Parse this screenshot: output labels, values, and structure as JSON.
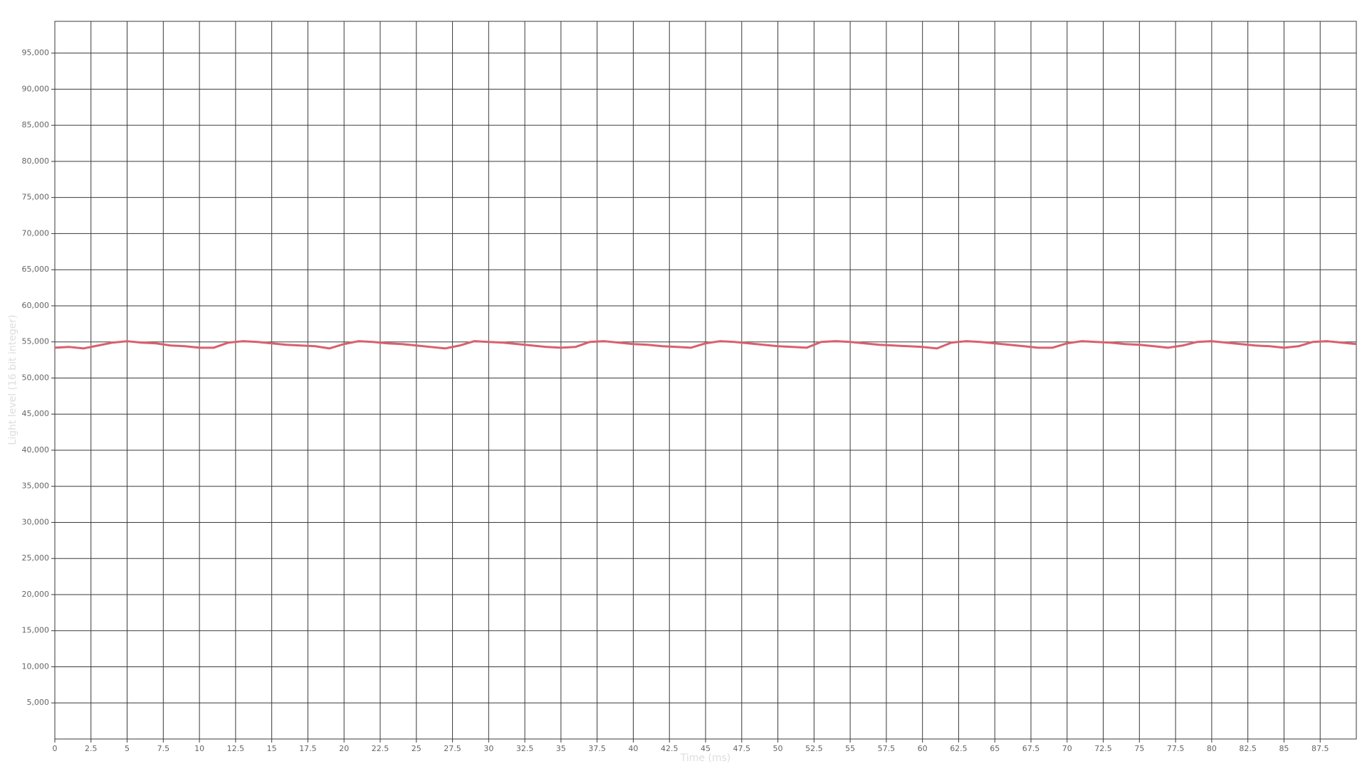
{
  "chart_data": {
    "type": "line",
    "x_label": "Time (ms)",
    "y_label": "Light level (16 bit integer)",
    "x": [
      0,
      1,
      2,
      3,
      4,
      5,
      6,
      7,
      8,
      9,
      10,
      11,
      12,
      13,
      14,
      15,
      16,
      17,
      18,
      19,
      20,
      21,
      22,
      23,
      24,
      25,
      26,
      27,
      28,
      29,
      30,
      31,
      32,
      33,
      34,
      35,
      36,
      37,
      38,
      39,
      40,
      41,
      42,
      43,
      44,
      45,
      46,
      47,
      48,
      49,
      50,
      51,
      52,
      53,
      54,
      55,
      56,
      57,
      58,
      59,
      60,
      61,
      62,
      63,
      64,
      65,
      66,
      67,
      68,
      69,
      70,
      71,
      72,
      73,
      74,
      75,
      76,
      77,
      78,
      79,
      80,
      81,
      82,
      83,
      84,
      85,
      86,
      87,
      88,
      89,
      90
    ],
    "series": [
      {
        "name": "Light level",
        "color": "#d9606e",
        "values": [
          54200,
          54300,
          54100,
          54500,
          54900,
          55100,
          54900,
          54800,
          54500,
          54400,
          54200,
          54200,
          54900,
          55100,
          55000,
          54800,
          54600,
          54500,
          54400,
          54100,
          54700,
          55100,
          55000,
          54800,
          54700,
          54500,
          54300,
          54100,
          54500,
          55100,
          55000,
          54900,
          54700,
          54500,
          54300,
          54200,
          54300,
          55000,
          55100,
          54900,
          54700,
          54600,
          54400,
          54300,
          54200,
          54800,
          55100,
          55000,
          54800,
          54600,
          54400,
          54300,
          54200,
          55000,
          55100,
          55000,
          54800,
          54600,
          54500,
          54400,
          54300,
          54100,
          54900,
          55100,
          55000,
          54800,
          54600,
          54400,
          54200,
          54200,
          54800,
          55100,
          55000,
          54900,
          54700,
          54600,
          54400,
          54200,
          54500,
          55000,
          55100,
          54900,
          54700,
          54500,
          54400,
          54200,
          54400,
          55000,
          55100,
          54900,
          54700
        ]
      }
    ],
    "xlim": [
      0,
      90
    ],
    "ylim": [
      0,
      99400
    ],
    "xticks": [
      0,
      2.5,
      5,
      7.5,
      10,
      12.5,
      15,
      17.5,
      20,
      22.5,
      25,
      27.5,
      30,
      32.5,
      35,
      37.5,
      40,
      42.5,
      45,
      47.5,
      50,
      52.5,
      55,
      57.5,
      60,
      62.5,
      65,
      67.5,
      70,
      72.5,
      75,
      77.5,
      80,
      82.5,
      85,
      87.5
    ],
    "yticks": [
      {
        "value": 5000,
        "label": "5,000"
      },
      {
        "value": 10000,
        "label": "10,000"
      },
      {
        "value": 15000,
        "label": "15,000"
      },
      {
        "value": 20000,
        "label": "20,000"
      },
      {
        "value": 25000,
        "label": "25,000"
      },
      {
        "value": 30000,
        "label": "30,000"
      },
      {
        "value": 35000,
        "label": "35,000"
      },
      {
        "value": 40000,
        "label": "40,000"
      },
      {
        "value": 45000,
        "label": "45,000"
      },
      {
        "value": 50000,
        "label": "50,000"
      },
      {
        "value": 55000,
        "label": "55,000"
      },
      {
        "value": 60000,
        "label": "60,000"
      },
      {
        "value": 65000,
        "label": "65,000"
      },
      {
        "value": 70000,
        "label": "70,000"
      },
      {
        "value": 75000,
        "label": "75,000"
      },
      {
        "value": 80000,
        "label": "80,000"
      },
      {
        "value": 85000,
        "label": "85,000"
      },
      {
        "value": 90000,
        "label": "90,000"
      },
      {
        "value": 95000,
        "label": "95,000"
      }
    ],
    "grid": true
  }
}
